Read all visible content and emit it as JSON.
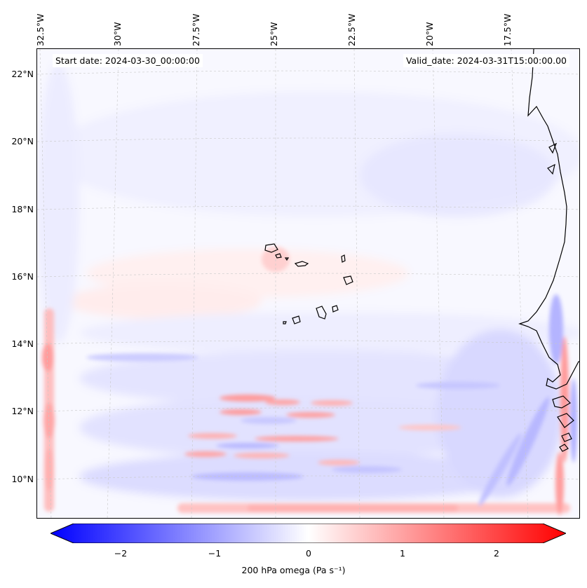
{
  "map": {
    "title_left": "Start date: 2024-03-30_00:00:00",
    "title_right": "Valid_date: 2024-03-31T15:00:00.00",
    "lon_labels": [
      "32.5°W",
      "30°W",
      "27.5°W",
      "25°W",
      "22.5°W",
      "20°W",
      "17.5°W"
    ],
    "lat_labels": [
      "22°N",
      "20°N",
      "18°N",
      "16°N",
      "14°N",
      "12°N",
      "10°N"
    ],
    "variable": "200 hPa omega",
    "units": "Pa s⁻¹",
    "region": "Cape Verde / West African coast",
    "colors": {
      "negative": "#0000ff",
      "zero": "#ffffff",
      "positive": "#ff0000",
      "coastline": "#000000",
      "grid": "#bdbdbd"
    }
  },
  "colorbar": {
    "title": "200 hPa omega (Pa s⁻¹)",
    "tick_labels": [
      "−2",
      "−1",
      "0",
      "1",
      "2"
    ],
    "range": [
      -2.7,
      2.7
    ],
    "orientation": "horizontal",
    "extend": "both"
  }
}
